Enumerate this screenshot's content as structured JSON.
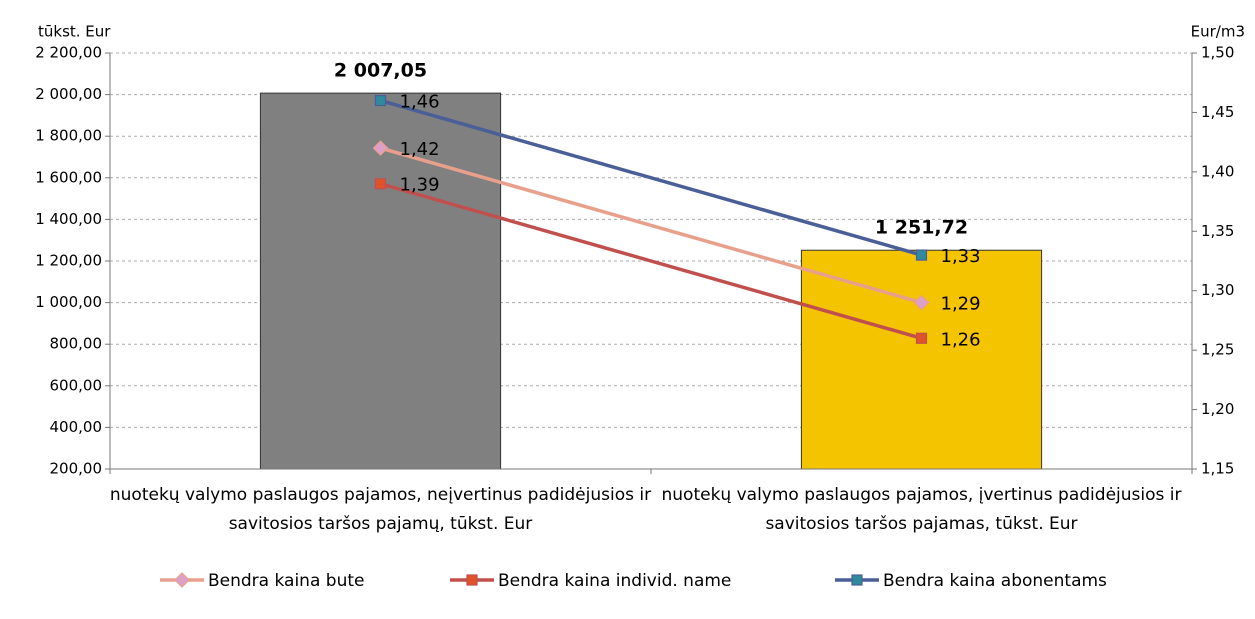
{
  "chart_data": {
    "type": "bar-line",
    "y_label": "tūkst. Eur",
    "y2_label": "Eur/m3",
    "categories": [
      "nuotekų valymo paslaugos pajamos, neįvertinus padidėjusios ir savitosios taršos pajamų, tūkst. Eur",
      "nuotekų valymo paslaugos pajamos, įvertinus padidėjusios ir savitosios taršos pajamas, tūkst. Eur"
    ],
    "bars": {
      "values": [
        2007.05,
        1251.72
      ],
      "value_labels": [
        "2 007,05",
        "1 251,72"
      ],
      "colors": [
        "#808080",
        "#f5c400"
      ]
    },
    "series": [
      {
        "name": "Bendra kaina bute",
        "color": "#e8a08c",
        "marker": "diamond",
        "marker_color": "#dda0c8",
        "axis": "y2",
        "values": [
          1.42,
          1.29
        ],
        "value_labels": [
          "1,42",
          "1,29"
        ]
      },
      {
        "name": "Bendra kaina individ. name",
        "color": "#c0504d",
        "marker": "square",
        "marker_color": "#e0522a",
        "axis": "y2",
        "values": [
          1.39,
          1.26
        ],
        "value_labels": [
          "1,39",
          "1,26"
        ]
      },
      {
        "name": "Bendra kaina abonentams",
        "color": "#4a5e98",
        "marker": "square",
        "marker_color": "#2e8a9c",
        "axis": "y2",
        "values": [
          1.46,
          1.33
        ],
        "value_labels": [
          "1,46",
          "1,33"
        ]
      }
    ],
    "ylim": [
      200,
      2200
    ],
    "yticks": [
      {
        "value": 200,
        "label": "200,00"
      },
      {
        "value": 400,
        "label": "400,00"
      },
      {
        "value": 600,
        "label": "600,00"
      },
      {
        "value": 800,
        "label": "800,00"
      },
      {
        "value": 1000,
        "label": "1 000,00"
      },
      {
        "value": 1200,
        "label": "1 200,00"
      },
      {
        "value": 1400,
        "label": "1 400,00"
      },
      {
        "value": 1600,
        "label": "1 600,00"
      },
      {
        "value": 1800,
        "label": "1 800,00"
      },
      {
        "value": 2000,
        "label": "2 000,00"
      },
      {
        "value": 2200,
        "label": "2 200,00"
      }
    ],
    "y2lim": [
      1.15,
      1.5
    ],
    "y2ticks": [
      {
        "value": 1.15,
        "label": "1,15"
      },
      {
        "value": 1.2,
        "label": "1,20"
      },
      {
        "value": 1.25,
        "label": "1,25"
      },
      {
        "value": 1.3,
        "label": "1,30"
      },
      {
        "value": 1.35,
        "label": "1,35"
      },
      {
        "value": 1.4,
        "label": "1,40"
      },
      {
        "value": 1.45,
        "label": "1,45"
      },
      {
        "value": 1.5,
        "label": "1,50"
      }
    ],
    "grid": true,
    "legend": "bottom"
  }
}
